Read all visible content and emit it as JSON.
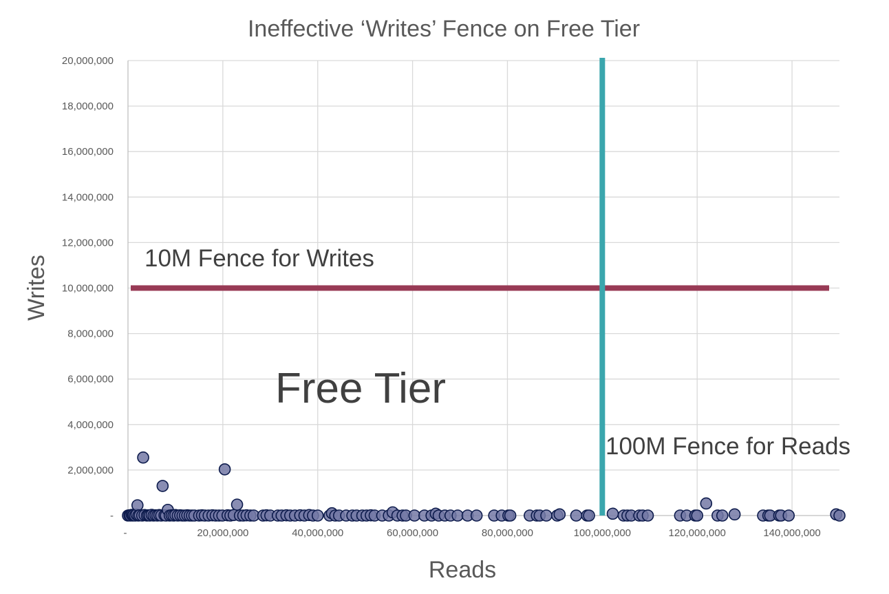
{
  "chart_data": {
    "type": "scatter",
    "title": "Ineffective ‘Writes’ Fence on Free Tier",
    "xlabel": "Reads",
    "ylabel": "Writes",
    "xlim": [
      0,
      150000000
    ],
    "ylim": [
      0,
      20000000
    ],
    "x_ticks": [
      {
        "value": 0,
        "label": "-"
      },
      {
        "value": 20000000,
        "label": "20,000,000"
      },
      {
        "value": 40000000,
        "label": "40,000,000"
      },
      {
        "value": 60000000,
        "label": "60,000,000"
      },
      {
        "value": 80000000,
        "label": "80,000,000"
      },
      {
        "value": 100000000,
        "label": "100,000,000"
      },
      {
        "value": 120000000,
        "label": "120,000,000"
      },
      {
        "value": 140000000,
        "label": "140,000,000"
      }
    ],
    "y_ticks": [
      {
        "value": 0,
        "label": "-"
      },
      {
        "value": 2000000,
        "label": "2,000,000"
      },
      {
        "value": 4000000,
        "label": "4,000,000"
      },
      {
        "value": 6000000,
        "label": "6,000,000"
      },
      {
        "value": 8000000,
        "label": "8,000,000"
      },
      {
        "value": 10000000,
        "label": "10,000,000"
      },
      {
        "value": 12000000,
        "label": "12,000,000"
      },
      {
        "value": 14000000,
        "label": "14,000,000"
      },
      {
        "value": 16000000,
        "label": "16,000,000"
      },
      {
        "value": 18000000,
        "label": "18,000,000"
      },
      {
        "value": 20000000,
        "label": "20,000,000"
      }
    ],
    "grid": true,
    "legend": "none",
    "colors": {
      "point_fill": "#7479a6",
      "point_stroke": "#0d1b4c",
      "writes_fence": "#983a55",
      "reads_fence": "#3aa6ad",
      "grid": "#d9d9d9",
      "text": "#595959"
    },
    "reference_lines": [
      {
        "orientation": "horizontal",
        "value": 10000000,
        "label": "10M Fence for Writes",
        "color": "#983a55"
      },
      {
        "orientation": "vertical",
        "value": 100000000,
        "label": "100M Fence for Reads",
        "color": "#3aa6ad"
      }
    ],
    "annotations": [
      {
        "text": "Free Tier"
      }
    ],
    "series": [
      {
        "points": [
          [
            0,
            0
          ],
          [
            300000,
            10000
          ],
          [
            500000,
            0
          ],
          [
            800000,
            30000
          ],
          [
            1000000,
            0
          ],
          [
            1200000,
            20000
          ],
          [
            1500000,
            0
          ],
          [
            1800000,
            40000
          ],
          [
            2000000,
            450000
          ],
          [
            2200000,
            0
          ],
          [
            2500000,
            10000
          ],
          [
            3000000,
            0
          ],
          [
            3200000,
            2550000
          ],
          [
            3500000,
            20000
          ],
          [
            4000000,
            0
          ],
          [
            4300000,
            10000
          ],
          [
            4600000,
            0
          ],
          [
            5000000,
            30000
          ],
          [
            5400000,
            0
          ],
          [
            5800000,
            10000
          ],
          [
            6200000,
            0
          ],
          [
            6600000,
            20000
          ],
          [
            7000000,
            0
          ],
          [
            7300000,
            1300000
          ],
          [
            7700000,
            10000
          ],
          [
            8000000,
            0
          ],
          [
            8400000,
            250000
          ],
          [
            8800000,
            0
          ],
          [
            9200000,
            10000
          ],
          [
            9600000,
            0
          ],
          [
            10000000,
            20000
          ],
          [
            10500000,
            0
          ],
          [
            11000000,
            10000
          ],
          [
            11500000,
            0
          ],
          [
            12000000,
            0
          ],
          [
            12500000,
            10000
          ],
          [
            13000000,
            0
          ],
          [
            13500000,
            0
          ],
          [
            14000000,
            0
          ],
          [
            15000000,
            0
          ],
          [
            15600000,
            10000
          ],
          [
            16200000,
            0
          ],
          [
            17000000,
            0
          ],
          [
            17800000,
            10000
          ],
          [
            18500000,
            0
          ],
          [
            19200000,
            0
          ],
          [
            19900000,
            0
          ],
          [
            20400000,
            2030000
          ],
          [
            21000000,
            10000
          ],
          [
            21600000,
            0
          ],
          [
            22300000,
            20000
          ],
          [
            23000000,
            480000
          ],
          [
            23600000,
            0
          ],
          [
            24300000,
            0
          ],
          [
            25000000,
            10000
          ],
          [
            25800000,
            0
          ],
          [
            26500000,
            0
          ],
          [
            28500000,
            0
          ],
          [
            29200000,
            10000
          ],
          [
            30000000,
            0
          ],
          [
            31600000,
            0
          ],
          [
            32400000,
            0
          ],
          [
            33400000,
            10000
          ],
          [
            34200000,
            0
          ],
          [
            35200000,
            0
          ],
          [
            36300000,
            10000
          ],
          [
            37200000,
            0
          ],
          [
            38200000,
            20000
          ],
          [
            39000000,
            0
          ],
          [
            40000000,
            0
          ],
          [
            42500000,
            0
          ],
          [
            43000000,
            100000
          ],
          [
            43700000,
            0
          ],
          [
            44500000,
            0
          ],
          [
            46000000,
            0
          ],
          [
            47300000,
            0
          ],
          [
            48200000,
            0
          ],
          [
            49400000,
            0
          ],
          [
            50300000,
            0
          ],
          [
            51200000,
            10000
          ],
          [
            52000000,
            0
          ],
          [
            53600000,
            0
          ],
          [
            55000000,
            0
          ],
          [
            55800000,
            140000
          ],
          [
            56800000,
            0
          ],
          [
            57900000,
            0
          ],
          [
            58600000,
            0
          ],
          [
            60400000,
            0
          ],
          [
            62500000,
            0
          ],
          [
            64000000,
            0
          ],
          [
            64900000,
            80000
          ],
          [
            65500000,
            0
          ],
          [
            66800000,
            0
          ],
          [
            68000000,
            0
          ],
          [
            69500000,
            0
          ],
          [
            71600000,
            0
          ],
          [
            73500000,
            0
          ],
          [
            77200000,
            0
          ],
          [
            78800000,
            0
          ],
          [
            80200000,
            0
          ],
          [
            80600000,
            0
          ],
          [
            84700000,
            0
          ],
          [
            86200000,
            0
          ],
          [
            86800000,
            0
          ],
          [
            88200000,
            0
          ],
          [
            90500000,
            0
          ],
          [
            91000000,
            50000
          ],
          [
            94500000,
            0
          ],
          [
            96800000,
            0
          ],
          [
            97200000,
            0
          ],
          [
            102200000,
            80000
          ],
          [
            104500000,
            0
          ],
          [
            105300000,
            0
          ],
          [
            106100000,
            0
          ],
          [
            107800000,
            0
          ],
          [
            108500000,
            0
          ],
          [
            109600000,
            0
          ],
          [
            116400000,
            0
          ],
          [
            117800000,
            0
          ],
          [
            119600000,
            0
          ],
          [
            120000000,
            0
          ],
          [
            121900000,
            530000
          ],
          [
            124300000,
            0
          ],
          [
            125300000,
            0
          ],
          [
            127900000,
            50000
          ],
          [
            133900000,
            0
          ],
          [
            135000000,
            0
          ],
          [
            135400000,
            0
          ],
          [
            137300000,
            0
          ],
          [
            137700000,
            0
          ],
          [
            139300000,
            0
          ],
          [
            149300000,
            50000
          ],
          [
            150000000,
            0
          ]
        ]
      }
    ]
  }
}
